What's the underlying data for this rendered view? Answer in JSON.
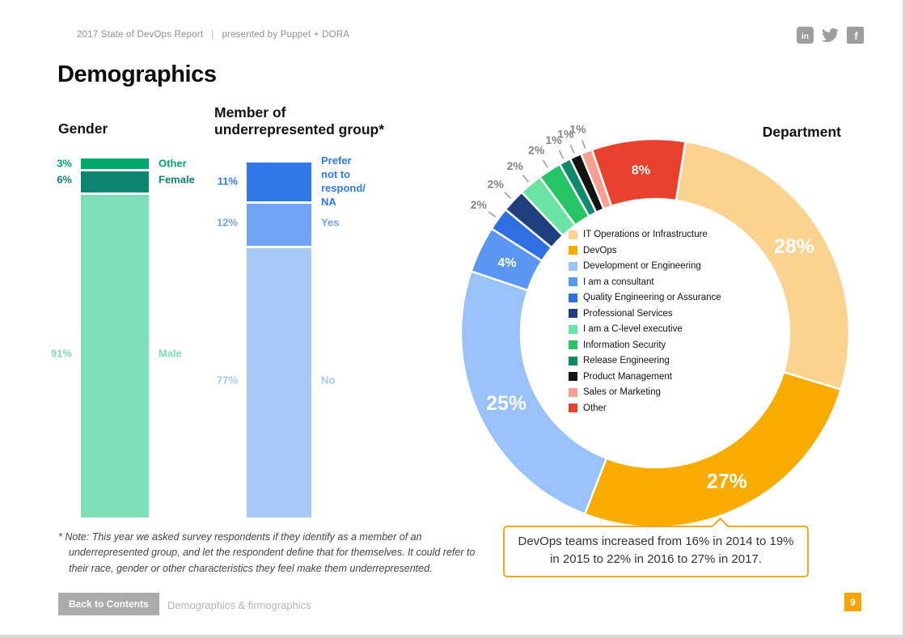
{
  "page": {
    "header": {
      "report": "2017 State of DevOps Report",
      "divider": "|",
      "presented_by": "presented by Puppet + DORA"
    },
    "social_icons": [
      "linkedin-icon",
      "twitter-icon",
      "facebook-icon"
    ],
    "social_glyphs": {
      "linkedin": "in",
      "facebook": "f"
    },
    "title": "Demographics",
    "footnote": {
      "marker": "*",
      "text": "Note: This year we asked survey respondents if they identify as a member of an underrepresented group, and let the respondent define that for themselves. It could refer to their race, gender or other characteristics they feel make them underrepresented."
    },
    "footer": {
      "back_button": "Back to Contents",
      "section": "Demographics & firmographics",
      "page_number": "9"
    }
  },
  "colors": {
    "accent_orange": "#F5A623",
    "footer_gray": "#ABABAB",
    "icon_gray": "#9E9E9E"
  },
  "chart_data": [
    {
      "type": "bar",
      "stacked": true,
      "title": "Gender",
      "unit": "%",
      "segments": [
        {
          "label": "Other",
          "value": 3,
          "color": "#00A76D"
        },
        {
          "label": "Female",
          "value": 6,
          "color": "#0B8570"
        },
        {
          "label": "Male",
          "value": 91,
          "color": "#7CDFB5"
        }
      ]
    },
    {
      "type": "bar",
      "stacked": true,
      "title": "Member of\nunderrepresented group*",
      "unit": "%",
      "segments": [
        {
          "label": "Prefer not to respond/\nNA",
          "value": 11,
          "color": "#2F79EA"
        },
        {
          "label": "Yes",
          "value": 12,
          "color": "#6FA5F4"
        },
        {
          "label": "No",
          "value": 77,
          "color": "#A6C9F8"
        }
      ]
    },
    {
      "type": "donut",
      "title": "Department",
      "unit": "%",
      "legend_position": "center",
      "segments": [
        {
          "label": "IT Operations or Infrastructure",
          "value": 28,
          "color": "#FBD391"
        },
        {
          "label": "DevOps",
          "value": 27,
          "color": "#F8AC00"
        },
        {
          "label": "Development or Engineering",
          "value": 25,
          "color": "#99C2F9"
        },
        {
          "label": "I am a consultant",
          "value": 4,
          "color": "#5A97F2"
        },
        {
          "label": "Quality Engineering or Assurance",
          "value": 2,
          "color": "#2D6EE0"
        },
        {
          "label": "Professional Services",
          "value": 2,
          "color": "#1F3E7E"
        },
        {
          "label": "I am a C-level executive",
          "value": 2,
          "color": "#6BE3A3"
        },
        {
          "label": "Information Security",
          "value": 2,
          "color": "#25C464"
        },
        {
          "label": "Release Engineering",
          "value": 1,
          "color": "#0F8A6D"
        },
        {
          "label": "Product Management",
          "value": 1,
          "color": "#131313"
        },
        {
          "label": "Sales or Marketing",
          "value": 1,
          "color": "#F89F92"
        },
        {
          "label": "Other",
          "value": 8,
          "color": "#E8412E"
        }
      ],
      "annotation": "DevOps teams increased from 16% in 2014 to 19% in 2015 to 22% in 2016 to 27% in 2017."
    }
  ]
}
